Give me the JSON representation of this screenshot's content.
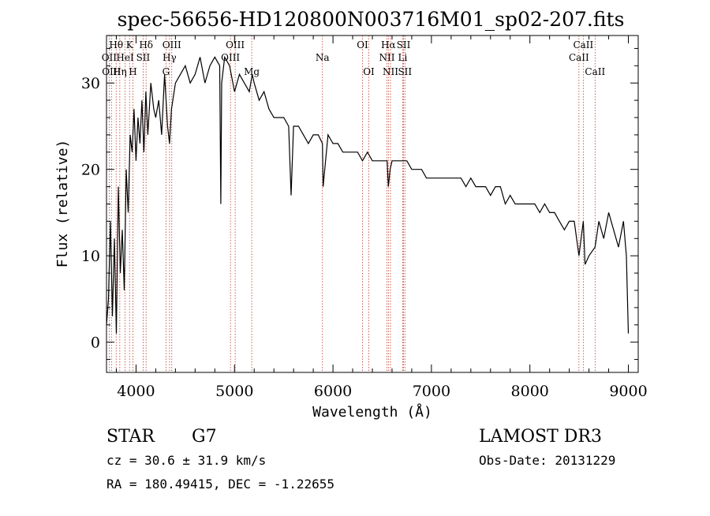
{
  "chart_data": {
    "type": "line",
    "title": "spec-56656-HD120800N003716M01_sp02-207.fits",
    "xlabel": "Wavelength (Å)",
    "ylabel": "Flux (relative)",
    "xlim": [
      3700,
      9100
    ],
    "ylim": [
      -3.5,
      35.5
    ],
    "xticks": [
      4000,
      5000,
      6000,
      7000,
      8000,
      9000
    ],
    "yticks": [
      0,
      10,
      20,
      30
    ],
    "grid": false,
    "series": [
      {
        "color": "#000000",
        "x": [
          3700,
          3720,
          3740,
          3760,
          3780,
          3800,
          3820,
          3840,
          3860,
          3880,
          3900,
          3920,
          3940,
          3960,
          3980,
          4000,
          4020,
          4040,
          4060,
          4080,
          4100,
          4120,
          4150,
          4180,
          4200,
          4230,
          4260,
          4290,
          4300,
          4320,
          4340,
          4360,
          4400,
          4450,
          4500,
          4550,
          4600,
          4650,
          4700,
          4750,
          4800,
          4850,
          4861,
          4870,
          4900,
          4950,
          5000,
          5050,
          5100,
          5150,
          5180,
          5200,
          5250,
          5300,
          5350,
          5400,
          5450,
          5500,
          5550,
          5575,
          5600,
          5650,
          5700,
          5750,
          5800,
          5850,
          5893,
          5900,
          5950,
          6000,
          6050,
          6100,
          6150,
          6200,
          6250,
          6300,
          6350,
          6400,
          6450,
          6500,
          6550,
          6563,
          6580,
          6600,
          6650,
          6700,
          6750,
          6800,
          6850,
          6900,
          6950,
          7000,
          7050,
          7100,
          7150,
          7200,
          7250,
          7300,
          7350,
          7400,
          7450,
          7500,
          7550,
          7600,
          7650,
          7700,
          7750,
          7800,
          7850,
          7900,
          7950,
          8000,
          8050,
          8100,
          8150,
          8200,
          8250,
          8300,
          8350,
          8400,
          8450,
          8498,
          8520,
          8542,
          8560,
          8600,
          8662,
          8700,
          8750,
          8800,
          8850,
          8900,
          8950,
          8980,
          9000
        ],
        "y": [
          2,
          5,
          14,
          3,
          12,
          1,
          18,
          8,
          13,
          6,
          20,
          15,
          24,
          22,
          27,
          21,
          26,
          23,
          28,
          22,
          29,
          24,
          30,
          27,
          26,
          28,
          24,
          31,
          29,
          25,
          23,
          27,
          30,
          31,
          32,
          30,
          31,
          33,
          30,
          32,
          33,
          32,
          16,
          30,
          33,
          32,
          29,
          31,
          30,
          29,
          31,
          30,
          28,
          29,
          27,
          26,
          26,
          26,
          25,
          17,
          25,
          25,
          24,
          23,
          24,
          24,
          23,
          18,
          24,
          23,
          23,
          22,
          22,
          22,
          22,
          21,
          22,
          21,
          21,
          21,
          21,
          18,
          20,
          21,
          21,
          21,
          21,
          20,
          20,
          20,
          19,
          19,
          19,
          19,
          19,
          19,
          19,
          19,
          18,
          19,
          18,
          18,
          18,
          17,
          18,
          18,
          16,
          17,
          16,
          16,
          16,
          16,
          16,
          15,
          16,
          15,
          15,
          14,
          13,
          14,
          14,
          10,
          12,
          14,
          9,
          10,
          11,
          14,
          12,
          15,
          13,
          11,
          14,
          10,
          1
        ]
      }
    ],
    "lines": [
      {
        "label": "Hθ",
        "x": 3798,
        "row": 1
      },
      {
        "label": "OII",
        "x": 3727,
        "row": 2
      },
      {
        "label": "OIII",
        "x": 3750,
        "row": 3
      },
      {
        "label": "K",
        "x": 3934,
        "row": 1
      },
      {
        "label": "HeI",
        "x": 3889,
        "row": 2
      },
      {
        "label": "Hη",
        "x": 3835,
        "row": 3
      },
      {
        "label": "Hδ",
        "x": 4102,
        "row": 1
      },
      {
        "label": "SII",
        "x": 4072,
        "row": 2
      },
      {
        "label": "H",
        "x": 3968,
        "row": 3
      },
      {
        "label": "OIII",
        "x": 4363,
        "row": 1
      },
      {
        "label": "Hγ",
        "x": 4340,
        "row": 2
      },
      {
        "label": "G",
        "x": 4304,
        "row": 3
      },
      {
        "label": "OIII",
        "x": 5007,
        "row": 1
      },
      {
        "label": "OIII",
        "x": 4959,
        "row": 2
      },
      {
        "label": "Mg",
        "x": 5175,
        "row": 3
      },
      {
        "label": "Na",
        "x": 5893,
        "row": 2
      },
      {
        "label": "OI",
        "x": 6300,
        "row": 1
      },
      {
        "label": "OI",
        "x": 6364,
        "row": 3
      },
      {
        "label": "Hα",
        "x": 6563,
        "row": 1
      },
      {
        "label": "SII",
        "x": 6717,
        "row": 1
      },
      {
        "label": "NII",
        "x": 6548,
        "row": 2
      },
      {
        "label": "Li",
        "x": 6708,
        "row": 2
      },
      {
        "label": "NII",
        "x": 6584,
        "row": 3
      },
      {
        "label": "SII",
        "x": 6731,
        "row": 3
      },
      {
        "label": "CaII",
        "x": 8542,
        "row": 1
      },
      {
        "label": "CaII",
        "x": 8498,
        "row": 2
      },
      {
        "label": "CaII",
        "x": 8662,
        "row": 3
      }
    ],
    "line_color": "#c0392b"
  },
  "info": {
    "class_label": "STAR",
    "subclass": "G7",
    "survey": "LAMOST DR3",
    "cz": "cz = 30.6 ± 31.9 km/s",
    "obs_date": "Obs-Date: 20131229",
    "coords": "RA = 180.49415, DEC =  -1.22655"
  }
}
